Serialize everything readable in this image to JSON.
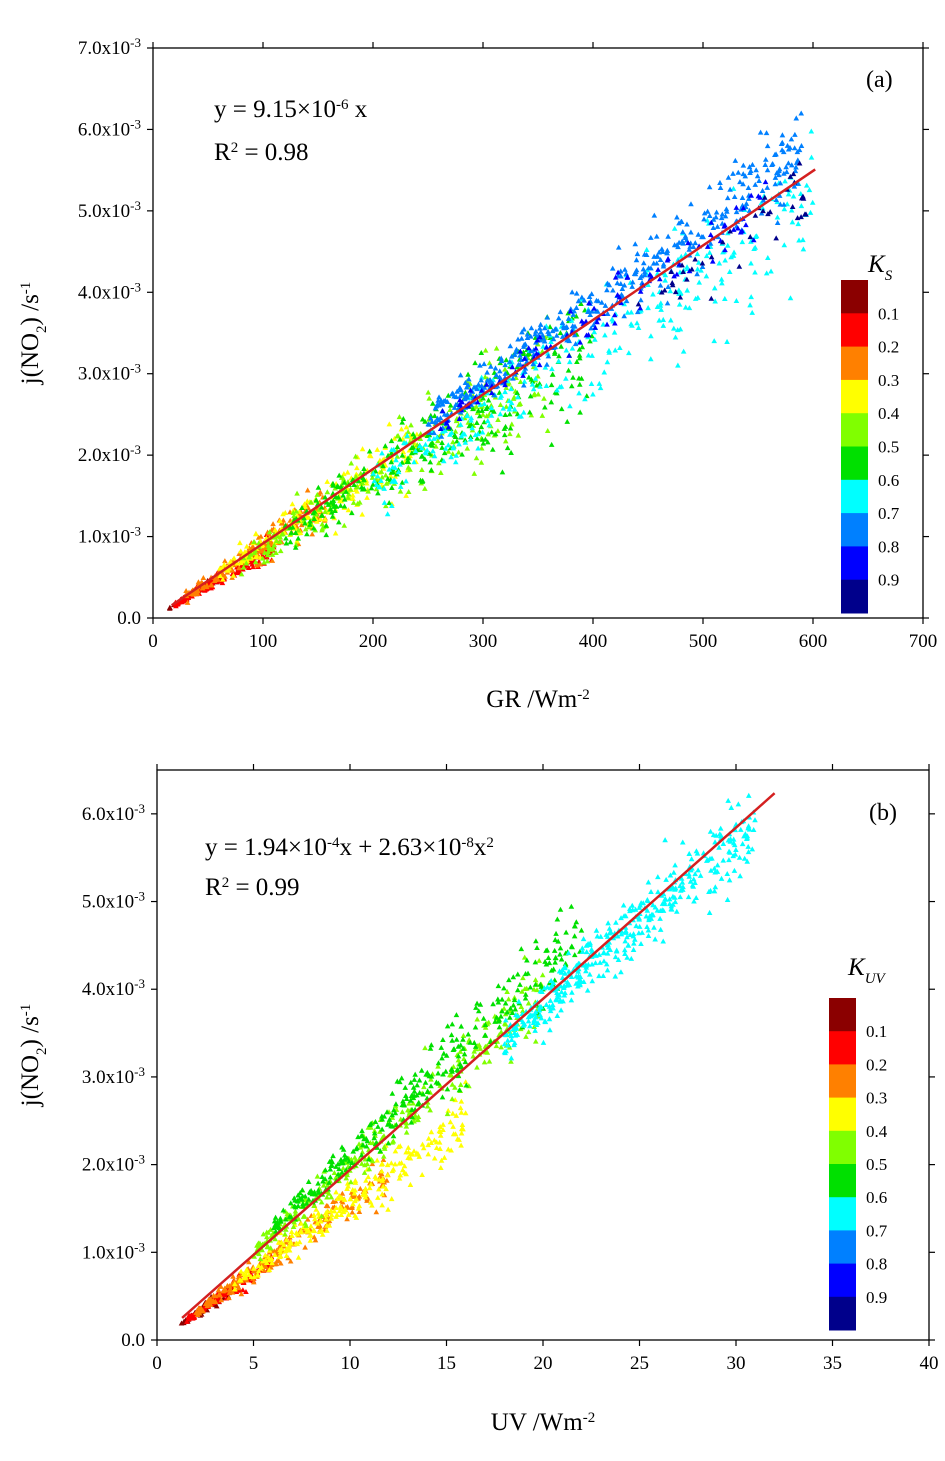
{
  "chart_data": [
    {
      "type": "scatter",
      "panel_label": "(a)",
      "xlabel": "GR /Wm",
      "xlabel_sup": "-2",
      "ylabel_parts": [
        "j(NO",
        "2",
        ") /s",
        "-1"
      ],
      "xlim": [
        0,
        700
      ],
      "ylim": [
        0,
        0.007
      ],
      "x_ticks": [
        0,
        100,
        200,
        300,
        400,
        500,
        600,
        700
      ],
      "x_tick_labels": [
        "0",
        "100",
        "200",
        "300",
        "400",
        "500",
        "600",
        "700"
      ],
      "y_ticks": [
        0,
        0.001,
        0.002,
        0.003,
        0.004,
        0.005,
        0.006,
        0.007
      ],
      "y_tick_labels": [
        {
          "m": "0.0",
          "e": ""
        },
        {
          "m": "1.0x10",
          "e": "-3"
        },
        {
          "m": "2.0x10",
          "e": "-3"
        },
        {
          "m": "3.0x10",
          "e": "-3"
        },
        {
          "m": "4.0x10",
          "e": "-3"
        },
        {
          "m": "5.0x10",
          "e": "-3"
        },
        {
          "m": "6.0x10",
          "e": "-3"
        },
        {
          "m": "7.0x10",
          "e": "-3"
        }
      ],
      "equation": [
        "y = 9.15×10",
        "-6",
        " x"
      ],
      "r2": [
        "R",
        "2",
        " = 0.98"
      ],
      "fit": {
        "a": 9.15e-06,
        "b": 0,
        "x_range": [
          17,
          602
        ],
        "color": "#d42020"
      },
      "colorbar": {
        "title": "K",
        "title_sub": "S",
        "labels": [
          "0.1",
          "0.2",
          "0.3",
          "0.4",
          "0.5",
          "0.6",
          "0.7",
          "0.8",
          "0.9"
        ],
        "colors": [
          "#8b0000",
          "#ff0000",
          "#ff8000",
          "#ffff00",
          "#80ff00",
          "#00e000",
          "#00ffff",
          "#0080ff",
          "#0000ff",
          "#00008b"
        ]
      },
      "scatter_clusters": [
        {
          "k": 0,
          "x_range": [
            15,
            60
          ],
          "cx": 0.92,
          "spread": 0.1,
          "n": 70
        },
        {
          "k": 1,
          "x_range": [
            20,
            110
          ],
          "cx": 0.88,
          "spread": 0.14,
          "n": 160
        },
        {
          "k": 2,
          "x_range": [
            30,
            160
          ],
          "cx": 0.97,
          "spread": 0.18,
          "n": 180
        },
        {
          "k": 3,
          "x_range": [
            60,
            240
          ],
          "cx": 0.97,
          "spread": 0.2,
          "n": 200
        },
        {
          "k": 4,
          "x_range": [
            80,
            360
          ],
          "cx": 0.93,
          "spread": 0.22,
          "n": 260
        },
        {
          "k": 5,
          "x_range": [
            120,
            400
          ],
          "cx": 0.93,
          "spread": 0.22,
          "n": 280
        },
        {
          "k": 6,
          "x_range": [
            200,
            600
          ],
          "cx": 0.92,
          "spread": 0.16,
          "n": 320
        },
        {
          "k": 7,
          "x_range": [
            250,
            590
          ],
          "cx": 1.05,
          "spread": 0.1,
          "n": 420
        },
        {
          "k": 8,
          "x_range": [
            260,
            560
          ],
          "cx": 1.0,
          "spread": 0.08,
          "n": 110
        },
        {
          "k": 9,
          "x_range": [
            440,
            600
          ],
          "cx": 0.95,
          "spread": 0.07,
          "n": 40
        }
      ]
    },
    {
      "type": "scatter",
      "panel_label": "(b)",
      "xlabel": "UV /Wm",
      "xlabel_sup": "-2",
      "ylabel_parts": [
        "j(NO",
        "2",
        ") /s",
        "-1"
      ],
      "xlim": [
        0,
        40
      ],
      "ylim": [
        0,
        0.0065
      ],
      "x_ticks": [
        0,
        5,
        10,
        15,
        20,
        25,
        30,
        35,
        40
      ],
      "x_tick_labels": [
        "0",
        "5",
        "10",
        "15",
        "20",
        "25",
        "30",
        "35",
        "40"
      ],
      "y_ticks": [
        0,
        0.001,
        0.002,
        0.003,
        0.004,
        0.005,
        0.006
      ],
      "y_tick_labels": [
        {
          "m": "0.0",
          "e": ""
        },
        {
          "m": "1.0x10",
          "e": "-3"
        },
        {
          "m": "2.0x10",
          "e": "-3"
        },
        {
          "m": "3.0x10",
          "e": "-3"
        },
        {
          "m": "4.0x10",
          "e": "-3"
        },
        {
          "m": "5.0x10",
          "e": "-3"
        },
        {
          "m": "6.0x10",
          "e": "-3"
        }
      ],
      "equation": [
        "y = 1.94×10",
        "-4",
        "x + 2.63×10",
        "-8",
        "x",
        "2"
      ],
      "r2": [
        "R",
        "2",
        " = 0.99"
      ],
      "fit": {
        "a": 0.000194,
        "b": 2.63e-08,
        "x_range": [
          1.3,
          32
        ],
        "color": "#d42020"
      },
      "colorbar": {
        "title": "K",
        "title_sub": "UV",
        "labels": [
          "0.1",
          "0.2",
          "0.3",
          "0.4",
          "0.5",
          "0.6",
          "0.7",
          "0.8",
          "0.9"
        ],
        "colors": [
          "#8b0000",
          "#ff0000",
          "#ff8000",
          "#ffff00",
          "#80ff00",
          "#00e000",
          "#00ffff",
          "#0080ff",
          "#0000ff",
          "#00008b"
        ]
      },
      "scatter_clusters": [
        {
          "k": 0,
          "x_range": [
            1.2,
            4
          ],
          "cx": 0.75,
          "spread": 0.1,
          "n": 70
        },
        {
          "k": 1,
          "x_range": [
            1.5,
            6
          ],
          "cx": 0.78,
          "spread": 0.1,
          "n": 120
        },
        {
          "k": 2,
          "x_range": [
            2,
            12
          ],
          "cx": 0.82,
          "spread": 0.12,
          "n": 220
        },
        {
          "k": 3,
          "x_range": [
            4,
            16
          ],
          "cx": 0.82,
          "spread": 0.12,
          "n": 240
        },
        {
          "k": 4,
          "x_range": [
            5,
            20
          ],
          "cx": 1.02,
          "spread": 0.12,
          "n": 300
        },
        {
          "k": 5,
          "x_range": [
            6,
            22
          ],
          "cx": 1.08,
          "spread": 0.12,
          "n": 320
        },
        {
          "k": 6,
          "x_range": [
            18,
            31
          ],
          "cx": 0.98,
          "spread": 0.07,
          "n": 420
        }
      ]
    }
  ]
}
